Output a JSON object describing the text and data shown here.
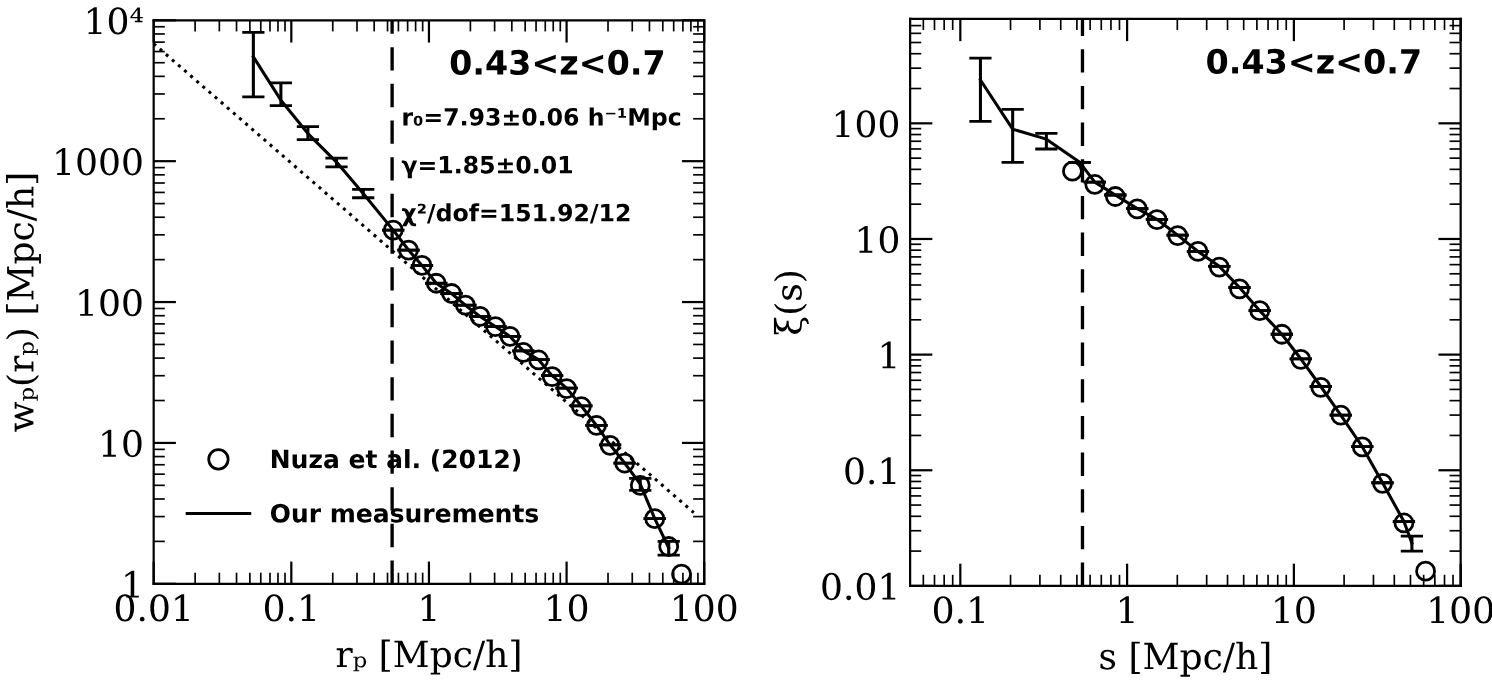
{
  "chart_data": [
    {
      "type": "line",
      "xlabel": "rₚ [Mpc/h]",
      "ylabel": "wₚ(rₚ) [Mpc/h]",
      "log": "xy",
      "xlim": [
        0.01,
        100
      ],
      "xticks": [
        0.01,
        0.1,
        1,
        10,
        100
      ],
      "ylim": [
        1,
        10000
      ],
      "yticks": [
        1,
        10,
        100,
        1000,
        {
          "value": 10000,
          "label": "10⁴"
        }
      ],
      "annotations": [
        "0.43<z<0.7",
        "r₀=7.93±0.06 h⁻¹Mpc",
        "γ=1.85±0.01",
        "χ²/dof=151.92/12"
      ],
      "ref_lines": [
        {
          "axis": "x",
          "value": 0.54,
          "label": null,
          "color": "#000000",
          "line_style": "dashed"
        }
      ],
      "legend": "lower left",
      "grid": false,
      "series": [
        {
          "name": "Nuza et al. (2012)",
          "type": "scatter",
          "marker": "circle",
          "color": "#000000",
          "x": [
            0.55,
            0.71,
            0.89,
            1.13,
            1.46,
            1.84,
            2.35,
            3.04,
            3.88,
            4.85,
            6.26,
            7.85,
            10.0,
            12.8,
            16.5,
            20.7,
            26.4,
            34.3,
            43.7,
            55.2,
            68.4
          ],
          "values": [
            324,
            234,
            182,
            136,
            115,
            95,
            79,
            67,
            57,
            44,
            38.8,
            29.6,
            24.3,
            18.1,
            13.3,
            9.6,
            7.2,
            5.0,
            2.9,
            1.84,
            1.17
          ]
        },
        {
          "name": "Our measurements",
          "line_style": "solid",
          "marker": "none",
          "color": "#000000",
          "x": [
            0.053,
            0.084,
            0.132,
            0.213,
            0.333,
            0.55,
            0.71,
            0.89,
            1.13,
            1.46,
            1.84,
            2.35,
            3.04,
            3.88,
            4.85,
            6.26,
            7.85,
            10.0,
            12.8,
            16.5,
            20.7,
            26.4,
            34.3,
            43.7,
            55.2
          ],
          "values": [
            5500,
            2710,
            1570,
            985,
            590,
            324,
            234,
            182,
            136,
            115,
            95,
            79,
            67,
            57,
            45,
            39,
            30,
            24.5,
            18.3,
            13.3,
            9.7,
            7.2,
            5.1,
            2.9,
            1.8
          ],
          "errors": [
            [
              2860,
              8200
            ],
            [
              2480,
              3590
            ],
            [
              1420,
              1760
            ],
            [
              910,
              1050
            ],
            [
              550,
              630
            ],
            null,
            null,
            null,
            null,
            null,
            null,
            null,
            null,
            null,
            null,
            null,
            null,
            null,
            null,
            null,
            null,
            null,
            [
              4.6,
              5.6
            ],
            null,
            [
              1.6,
              2.0
            ]
          ]
        },
        {
          "line_style": "dotted",
          "marker": "none",
          "color": "#000000",
          "x": [
            0.01,
            84
          ],
          "values": [
            6830,
            3.2
          ]
        }
      ]
    },
    {
      "type": "line",
      "xlabel": "s [Mpc/h]",
      "ylabel": "ξ(s)",
      "log": "xy",
      "xlim": [
        0.05,
        100
      ],
      "xticks": [
        0.1,
        1,
        10,
        100
      ],
      "ylim": [
        0.01,
        800
      ],
      "yticks": [
        0.01,
        0.1,
        1,
        10,
        100
      ],
      "annotations": [
        "0.43<z<0.7"
      ],
      "ref_lines": [
        {
          "axis": "x",
          "value": 0.54,
          "label": null,
          "color": "#000000",
          "line_style": "dashed"
        }
      ],
      "legend": false,
      "grid": false,
      "series": [
        {
          "type": "scatter",
          "marker": "circle",
          "color": "#000000",
          "x": [
            0.47,
            0.64,
            0.85,
            1.15,
            1.51,
            2.01,
            2.66,
            3.57,
            4.72,
            6.24,
            8.47,
            11.0,
            14.5,
            19.1,
            25.7,
            34,
            45.7,
            61.6
          ],
          "values": [
            38.6,
            29.6,
            23.3,
            18.2,
            14.7,
            10.7,
            7.8,
            5.7,
            3.7,
            2.4,
            1.5,
            0.91,
            0.52,
            0.3,
            0.159,
            0.077,
            0.035,
            0.0134
          ]
        },
        {
          "line_style": "solid",
          "marker": "none",
          "color": "#000000",
          "x": [
            0.132,
            0.206,
            0.328,
            0.52,
            0.64,
            0.85,
            1.15,
            1.51,
            2.01,
            2.66,
            3.57,
            4.72,
            6.24,
            8.47,
            11.0,
            14.5,
            19.1,
            25.7,
            34,
            45.7,
            51
          ],
          "values": [
            237,
            89,
            73,
            46,
            31,
            24,
            18.3,
            14.8,
            10.8,
            7.8,
            5.8,
            3.8,
            2.4,
            1.5,
            0.92,
            0.53,
            0.3,
            0.16,
            0.078,
            0.036,
            0.0234
          ],
          "errors": [
            [
              104,
              367
            ],
            [
              46,
              132
            ],
            [
              60,
              82
            ],
            null,
            null,
            null,
            null,
            null,
            null,
            null,
            null,
            null,
            null,
            null,
            null,
            null,
            null,
            null,
            null,
            null,
            [
              0.02,
              0.027
            ]
          ]
        }
      ]
    }
  ]
}
